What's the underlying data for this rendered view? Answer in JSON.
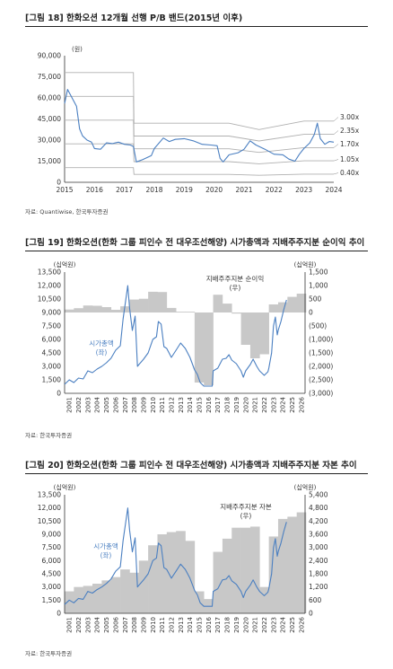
{
  "chart_data": [
    {
      "type": "line",
      "title": "[그림 18] 한화오션 12개월 선행 P/B 밴드(2015년 이후)",
      "unit_label": "(원)",
      "source": "자료: Quantiwise, 한국투자증권",
      "x_ticks": [
        "2015",
        "2016",
        "2017",
        "2018",
        "2019",
        "2020",
        "2021",
        "2022",
        "2023",
        "2024"
      ],
      "y_ticks": [
        "0",
        "15,000",
        "30,000",
        "45,000",
        "60,000",
        "75,000",
        "90,000"
      ],
      "ylim": [
        0,
        90000
      ],
      "band_labels": [
        "3.00x",
        "2.35x",
        "1.70x",
        "1.05x",
        "0.40x"
      ],
      "bvps_points": [
        [
          2015.0,
          26000
        ],
        [
          2017.3,
          26000
        ],
        [
          2017.32,
          14000
        ],
        [
          2020.5,
          14000
        ],
        [
          2021.5,
          12500
        ],
        [
          2023.0,
          14500
        ],
        [
          2024.0,
          14500
        ]
      ],
      "price_points": [
        [
          2015.0,
          56000
        ],
        [
          2015.1,
          66000
        ],
        [
          2015.25,
          60000
        ],
        [
          2015.4,
          54000
        ],
        [
          2015.5,
          38000
        ],
        [
          2015.6,
          33000
        ],
        [
          2015.75,
          30000
        ],
        [
          2015.9,
          28500
        ],
        [
          2016.0,
          24000
        ],
        [
          2016.2,
          23500
        ],
        [
          2016.4,
          28000
        ],
        [
          2016.6,
          27500
        ],
        [
          2016.8,
          28500
        ],
        [
          2017.0,
          27000
        ],
        [
          2017.2,
          26500
        ],
        [
          2017.3,
          25500
        ],
        [
          2017.4,
          14500
        ],
        [
          2017.6,
          16000
        ],
        [
          2017.9,
          19000
        ],
        [
          2018.0,
          24000
        ],
        [
          2018.3,
          31500
        ],
        [
          2018.5,
          29000
        ],
        [
          2018.7,
          30500
        ],
        [
          2019.0,
          31000
        ],
        [
          2019.3,
          29500
        ],
        [
          2019.6,
          27000
        ],
        [
          2019.9,
          26500
        ],
        [
          2020.1,
          26000
        ],
        [
          2020.2,
          17000
        ],
        [
          2020.3,
          14500
        ],
        [
          2020.5,
          19500
        ],
        [
          2020.8,
          21000
        ],
        [
          2021.0,
          23500
        ],
        [
          2021.2,
          29500
        ],
        [
          2021.4,
          26500
        ],
        [
          2021.7,
          23500
        ],
        [
          2022.0,
          20000
        ],
        [
          2022.3,
          19500
        ],
        [
          2022.5,
          16500
        ],
        [
          2022.7,
          15000
        ],
        [
          2022.85,
          20000
        ],
        [
          2023.0,
          24000
        ],
        [
          2023.2,
          28000
        ],
        [
          2023.35,
          34000
        ],
        [
          2023.45,
          42000
        ],
        [
          2023.55,
          31000
        ],
        [
          2023.7,
          27000
        ],
        [
          2023.85,
          29000
        ],
        [
          2024.0,
          28500
        ]
      ]
    },
    {
      "type": "bar",
      "title": "[그림 19] 한화오션(한화 그룹 피인수 전 대우조선해양) 시가총액과 지배주주지분 순이익 추이",
      "left_unit": "(십억원)",
      "right_unit": "(십억원)",
      "source": "자료: 한국투자증권",
      "series_labels": [
        "지배주주지분 순이익",
        "(우)",
        "시가총액",
        "(좌)"
      ],
      "x_ticks": [
        "2001",
        "2002",
        "2003",
        "2004",
        "2005",
        "2006",
        "2007",
        "2008",
        "2009",
        "2010",
        "2011",
        "2012",
        "2013",
        "2014",
        "2015",
        "2016",
        "2017",
        "2018",
        "2019",
        "2020",
        "2021",
        "2022",
        "2023",
        "2024",
        "2025",
        "2026"
      ],
      "y_left_ticks": [
        "0",
        "1,500",
        "3,000",
        "4,500",
        "6,000",
        "7,500",
        "9,000",
        "10,500",
        "12,000",
        "13,500"
      ],
      "y_right_ticks": [
        "1,500",
        "1,000",
        "500",
        "0",
        "(500)",
        "(1,000)",
        "(1,500)",
        "(2,000)",
        "(2,500)",
        "(3,000)"
      ],
      "ylim_left": [
        0,
        13500
      ],
      "ylim_right": [
        -3000,
        1500
      ],
      "net_income": [
        110,
        160,
        260,
        250,
        200,
        100,
        230,
        480,
        510,
        770,
        760,
        170,
        30,
        30,
        -2600,
        -2700,
        660,
        330,
        -40,
        -1200,
        -1700,
        -1550,
        300,
        380,
        580,
        700
      ],
      "market_cap_points": [
        [
          2001.0,
          1000
        ],
        [
          2001.5,
          1500
        ],
        [
          2002.0,
          1200
        ],
        [
          2002.5,
          1700
        ],
        [
          2003.0,
          1600
        ],
        [
          2003.5,
          2500
        ],
        [
          2004.0,
          2300
        ],
        [
          2004.5,
          2700
        ],
        [
          2005.0,
          3000
        ],
        [
          2005.5,
          3400
        ],
        [
          2006.0,
          3900
        ],
        [
          2006.5,
          4800
        ],
        [
          2007.0,
          5300
        ],
        [
          2007.3,
          8300
        ],
        [
          2007.6,
          10500
        ],
        [
          2007.8,
          12000
        ],
        [
          2008.0,
          9500
        ],
        [
          2008.3,
          7000
        ],
        [
          2008.6,
          8600
        ],
        [
          2008.85,
          3000
        ],
        [
          2009.0,
          3200
        ],
        [
          2009.5,
          3800
        ],
        [
          2010.0,
          4500
        ],
        [
          2010.5,
          6000
        ],
        [
          2010.9,
          6300
        ],
        [
          2011.1,
          8000
        ],
        [
          2011.4,
          7700
        ],
        [
          2011.7,
          5200
        ],
        [
          2012.0,
          5000
        ],
        [
          2012.5,
          4000
        ],
        [
          2013.0,
          4800
        ],
        [
          2013.5,
          5600
        ],
        [
          2014.0,
          5000
        ],
        [
          2014.5,
          4000
        ],
        [
          2015.0,
          2600
        ],
        [
          2015.3,
          2100
        ],
        [
          2015.6,
          1200
        ],
        [
          2016.0,
          800
        ],
        [
          2016.9,
          800
        ],
        [
          2017.0,
          2500
        ],
        [
          2017.5,
          2800
        ],
        [
          2018.0,
          3800
        ],
        [
          2018.4,
          3900
        ],
        [
          2018.7,
          4300
        ],
        [
          2019.0,
          3700
        ],
        [
          2019.5,
          3300
        ],
        [
          2020.0,
          2500
        ],
        [
          2020.25,
          1800
        ],
        [
          2020.5,
          2500
        ],
        [
          2021.0,
          3200
        ],
        [
          2021.3,
          3800
        ],
        [
          2021.7,
          3000
        ],
        [
          2022.0,
          2500
        ],
        [
          2022.5,
          2000
        ],
        [
          2022.9,
          2400
        ],
        [
          2023.0,
          2800
        ],
        [
          2023.3,
          4500
        ],
        [
          2023.5,
          7500
        ],
        [
          2023.7,
          8500
        ],
        [
          2023.9,
          6500
        ],
        [
          2024.0,
          7000
        ],
        [
          2024.3,
          8000
        ],
        [
          2024.6,
          9300
        ],
        [
          2024.9,
          10400
        ]
      ]
    },
    {
      "type": "bar",
      "title": "[그림 20] 한화오션(한화 그룹 피인수 전 대우조선해양) 시가총액과 지배주주지분 자본 추이",
      "left_unit": "(십억원)",
      "right_unit": "(십억원)",
      "source": "자료: 한국투자증권",
      "series_labels": [
        "지배주주지분 자본",
        "(우)",
        "시가총액",
        "(좌)"
      ],
      "x_ticks": [
        "2001",
        "2002",
        "2003",
        "2004",
        "2005",
        "2006",
        "2007",
        "2008",
        "2009",
        "2010",
        "2011",
        "2012",
        "2013",
        "2014",
        "2015",
        "2016",
        "2017",
        "2018",
        "2019",
        "2020",
        "2021",
        "2022",
        "2023",
        "2024",
        "2025",
        "2026"
      ],
      "y_left_ticks": [
        "0",
        "1,500",
        "3,000",
        "4,500",
        "6,000",
        "7,500",
        "9,000",
        "10,500",
        "12,000",
        "13,500"
      ],
      "y_right_ticks": [
        "0",
        "600",
        "1,200",
        "1,800",
        "2,400",
        "3,000",
        "3,600",
        "4,200",
        "4,800",
        "5,400"
      ],
      "ylim_left": [
        0,
        13500
      ],
      "ylim_right": [
        0,
        5400
      ],
      "equity": [
        1000,
        1200,
        1250,
        1350,
        1500,
        1650,
        2000,
        1850,
        2400,
        3100,
        3600,
        3700,
        3750,
        3300,
        1000,
        650,
        2800,
        3400,
        3900,
        3900,
        3950,
        1200,
        3500,
        4300,
        4400,
        4600
      ],
      "market_cap_points": [
        [
          2001.0,
          1000
        ],
        [
          2001.5,
          1500
        ],
        [
          2002.0,
          1200
        ],
        [
          2002.5,
          1700
        ],
        [
          2003.0,
          1600
        ],
        [
          2003.5,
          2500
        ],
        [
          2004.0,
          2300
        ],
        [
          2004.5,
          2700
        ],
        [
          2005.0,
          3000
        ],
        [
          2005.5,
          3400
        ],
        [
          2006.0,
          3900
        ],
        [
          2006.5,
          4800
        ],
        [
          2007.0,
          5300
        ],
        [
          2007.3,
          8300
        ],
        [
          2007.6,
          10500
        ],
        [
          2007.8,
          12000
        ],
        [
          2008.0,
          9500
        ],
        [
          2008.3,
          7000
        ],
        [
          2008.6,
          8600
        ],
        [
          2008.85,
          3000
        ],
        [
          2009.0,
          3200
        ],
        [
          2009.5,
          3800
        ],
        [
          2010.0,
          4500
        ],
        [
          2010.5,
          6000
        ],
        [
          2010.9,
          6300
        ],
        [
          2011.1,
          8000
        ],
        [
          2011.4,
          7700
        ],
        [
          2011.7,
          5200
        ],
        [
          2012.0,
          5000
        ],
        [
          2012.5,
          4000
        ],
        [
          2013.0,
          4800
        ],
        [
          2013.5,
          5600
        ],
        [
          2014.0,
          5000
        ],
        [
          2014.5,
          4000
        ],
        [
          2015.0,
          2600
        ],
        [
          2015.3,
          2100
        ],
        [
          2015.6,
          1200
        ],
        [
          2016.0,
          800
        ],
        [
          2016.9,
          800
        ],
        [
          2017.0,
          2500
        ],
        [
          2017.5,
          2800
        ],
        [
          2018.0,
          3800
        ],
        [
          2018.4,
          3900
        ],
        [
          2018.7,
          4300
        ],
        [
          2019.0,
          3700
        ],
        [
          2019.5,
          3300
        ],
        [
          2020.0,
          2500
        ],
        [
          2020.25,
          1800
        ],
        [
          2020.5,
          2500
        ],
        [
          2021.0,
          3200
        ],
        [
          2021.3,
          3800
        ],
        [
          2021.7,
          3000
        ],
        [
          2022.0,
          2500
        ],
        [
          2022.5,
          2000
        ],
        [
          2022.9,
          2400
        ],
        [
          2023.0,
          2800
        ],
        [
          2023.3,
          4500
        ],
        [
          2023.5,
          7500
        ],
        [
          2023.7,
          8500
        ],
        [
          2023.9,
          6500
        ],
        [
          2024.0,
          7000
        ],
        [
          2024.3,
          8000
        ],
        [
          2024.6,
          9300
        ],
        [
          2024.9,
          10400
        ]
      ]
    }
  ],
  "colors": {
    "price_line": "#4a7fc1",
    "band_line": "#b0b0b0",
    "bar_fill": "#c8c8c8",
    "bvps_line": "#4a7fc1"
  }
}
